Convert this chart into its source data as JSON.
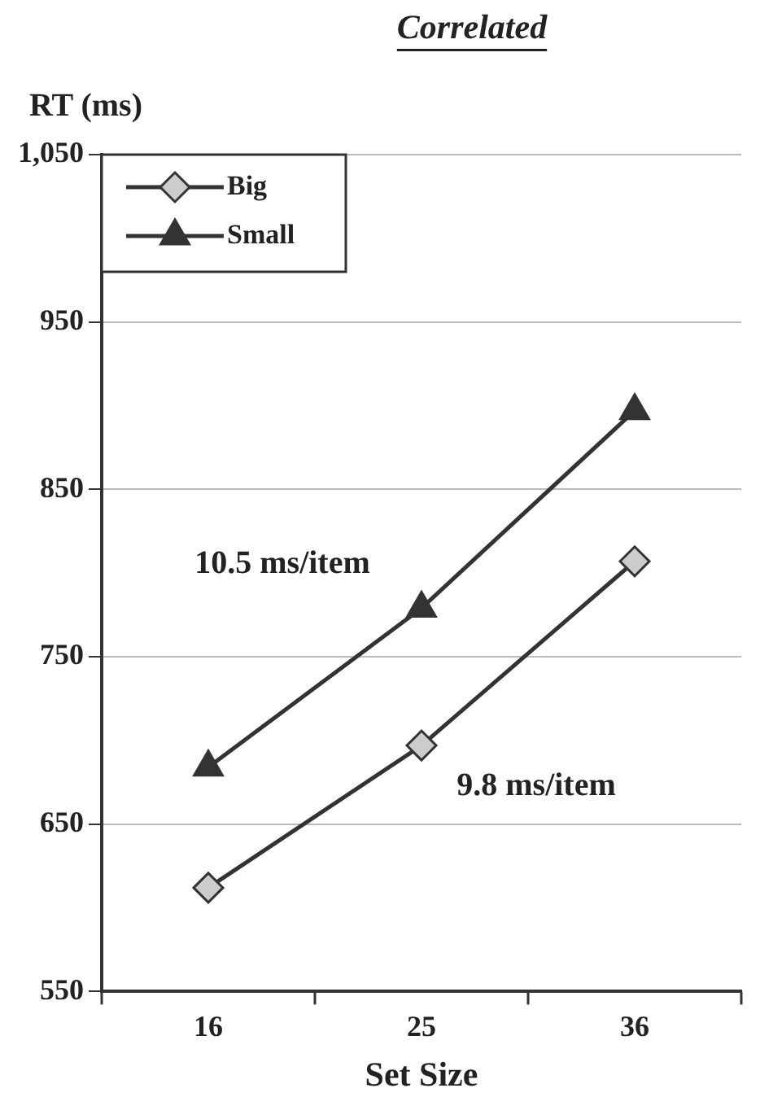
{
  "chart_data": {
    "type": "line",
    "title": "Correlated",
    "ylabel": "RT (ms)",
    "xlabel": "Set Size",
    "categories": [
      "16",
      "25",
      "36"
    ],
    "series": [
      {
        "name": "Big",
        "color": "#333333",
        "values": [
          612,
          697,
          807
        ],
        "marker": "diamond"
      },
      {
        "name": "Small",
        "color": "#333333",
        "values": [
          684,
          779,
          897
        ],
        "marker": "triangle"
      }
    ],
    "ylim": [
      550,
      1050
    ],
    "yticks": [
      550,
      650,
      750,
      850,
      950,
      {
        "value": 1050,
        "label": "1,050"
      }
    ],
    "grid": "y",
    "legend": "top left",
    "line_style": "solid",
    "annotations": [
      "10.5 ms/item",
      "9.8 ms/item"
    ]
  }
}
